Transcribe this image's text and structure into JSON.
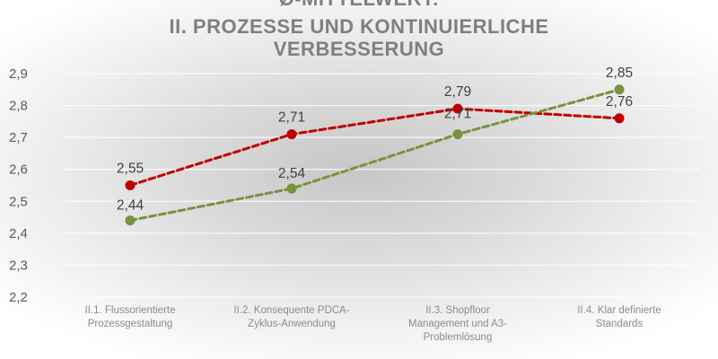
{
  "chart_data": {
    "type": "line",
    "title": "Ø-MITTELWERT:",
    "subtitle_lines": [
      "II. PROZESSE UND KONTINUIERLICHE",
      "VERBESSERUNG"
    ],
    "categories": [
      [
        "II.1. Flussorientierte",
        "Prozessgestaltung"
      ],
      [
        "II.2. Konsequente PDCA-",
        "Zyklus-Anwendung"
      ],
      [
        "II.3. Shopfloor",
        "Management und A3-",
        "Problemlösung"
      ],
      [
        "II.4. Klar definierte",
        "Standards"
      ]
    ],
    "y_ticks": [
      "2,2",
      "2,3",
      "2,4",
      "2,5",
      "2,6",
      "2,7",
      "2,8",
      "2,9"
    ],
    "ylim": [
      2.2,
      2.9
    ],
    "grid": true,
    "legend": "none",
    "series": [
      {
        "values": [
          2.55,
          2.71,
          2.79,
          2.76
        ],
        "labels": [
          "2,55",
          "2,71",
          "2,79",
          "2,76"
        ],
        "color": "#c00000",
        "line_style": "dashed"
      },
      {
        "values": [
          2.44,
          2.54,
          2.71,
          2.85
        ],
        "labels": [
          "2,44",
          "2,54",
          "2,71",
          "2,85"
        ],
        "color": "#77933c",
        "line_style": "dashed"
      }
    ]
  }
}
